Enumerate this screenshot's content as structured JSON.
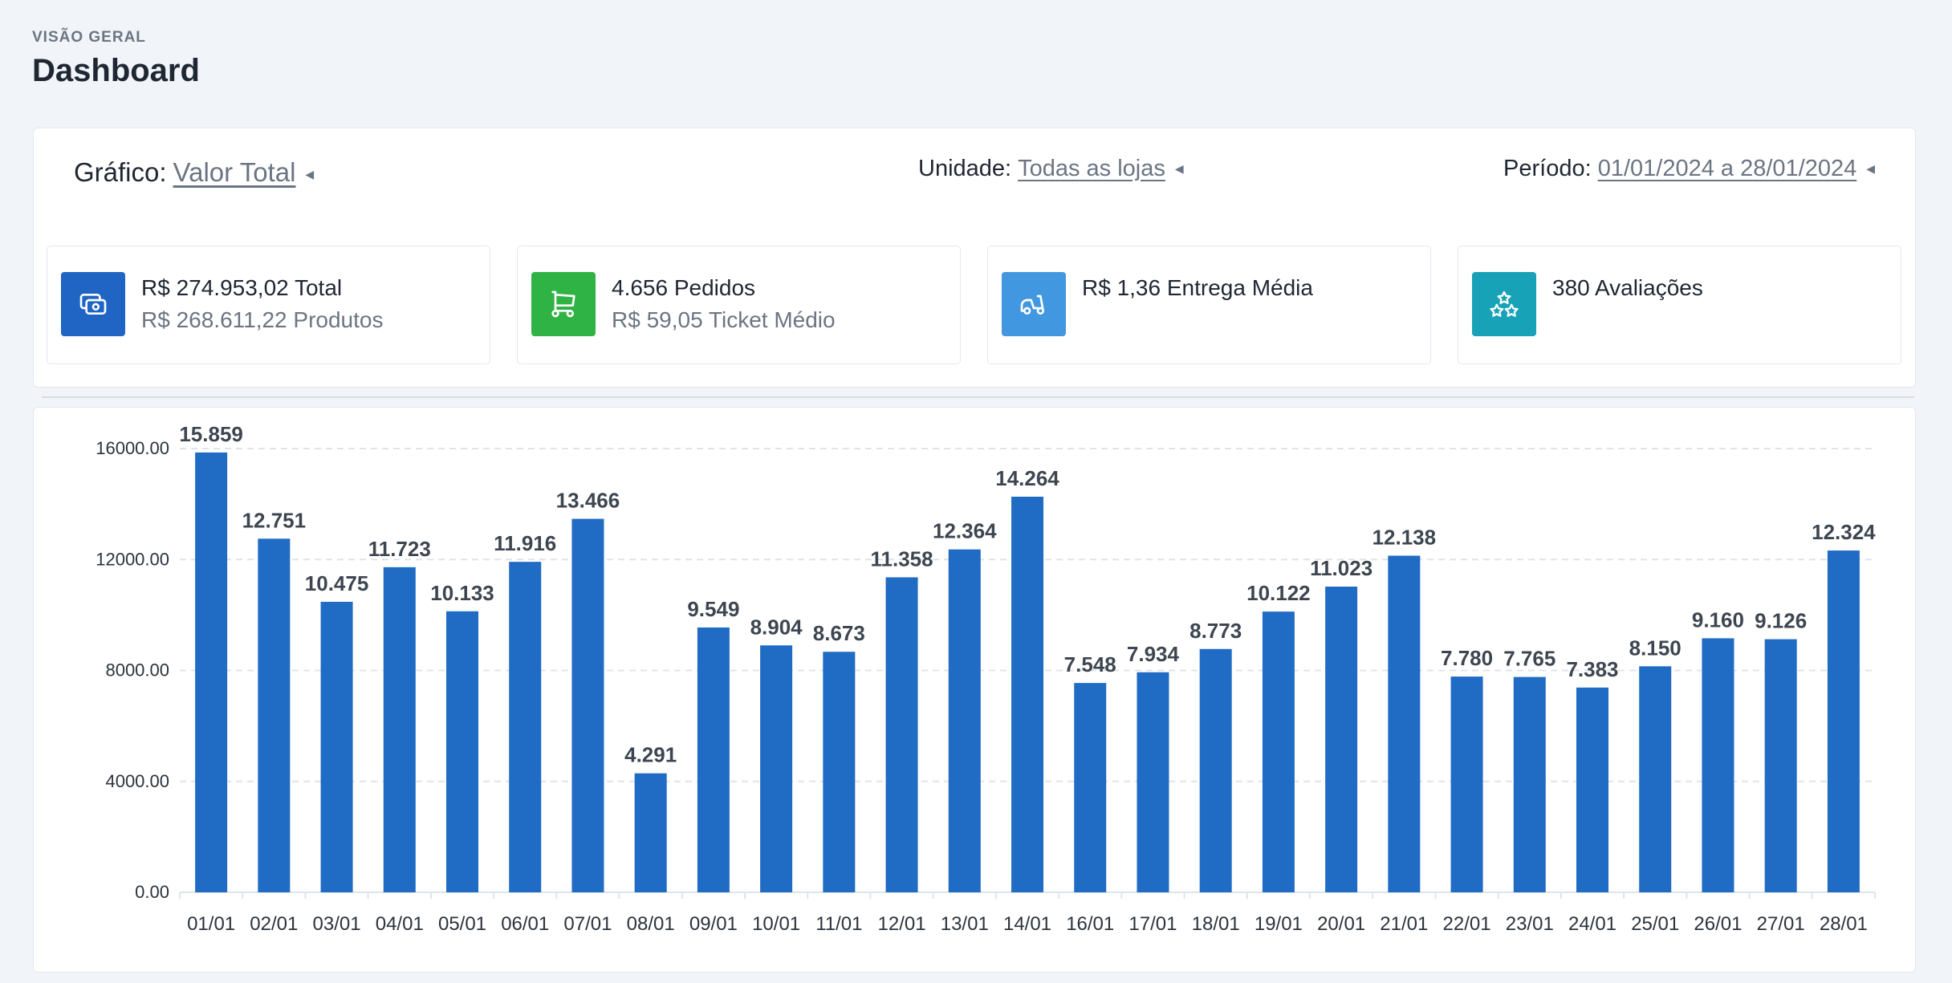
{
  "header": {
    "eyebrow": "VISÃO GERAL",
    "title": "Dashboard"
  },
  "filters": {
    "grafico": {
      "label": "Gráfico:",
      "value": "Valor Total"
    },
    "unidade": {
      "label": "Unidade:",
      "value": "Todas as lojas "
    },
    "periodo": {
      "label": "Período:",
      "value": "01/01/2024 a 28/01/2024"
    }
  },
  "stats": [
    {
      "line1": "R$ 274.953,02 Total",
      "line2": "R$ 268.611,22 Produtos",
      "icon": "money-icon",
      "color": "#2064c4"
    },
    {
      "line1": "4.656 Pedidos",
      "line2": "R$ 59,05 Ticket Médio",
      "icon": "cart-icon",
      "color": "#2fb344"
    },
    {
      "line1": "R$ 1,36 Entrega Média",
      "line2": "",
      "icon": "scooter-icon",
      "color": "#4298e0"
    },
    {
      "line1": "380 Avaliações",
      "line2": "",
      "icon": "stars-icon",
      "color": "#17a2b8"
    }
  ],
  "chart_data": {
    "type": "bar",
    "categories": [
      "01/01",
      "02/01",
      "03/01",
      "04/01",
      "05/01",
      "06/01",
      "07/01",
      "08/01",
      "09/01",
      "10/01",
      "11/01",
      "12/01",
      "13/01",
      "14/01",
      "16/01",
      "17/01",
      "18/01",
      "19/01",
      "20/01",
      "21/01",
      "22/01",
      "23/01",
      "24/01",
      "25/01",
      "26/01",
      "27/01",
      "28/01"
    ],
    "values": [
      15859,
      12751,
      10475,
      11723,
      10133,
      11916,
      13466,
      4291,
      9549,
      8904,
      8673,
      11358,
      12364,
      14264,
      7548,
      7934,
      8773,
      10122,
      11023,
      12138,
      7780,
      7765,
      7383,
      8150,
      9160,
      9126,
      12324
    ],
    "data_labels": [
      "15.859",
      "12.751",
      "10.475",
      "11.723",
      "10.133",
      "11.916",
      "13.466",
      "4.291",
      "9.549",
      "8.904",
      "8.673",
      "11.358",
      "12.364",
      "14.264",
      "7.548",
      "7.934",
      "8.773",
      "10.122",
      "11.023",
      "12.138",
      "7.780",
      "7.765",
      "7.383",
      "8.150",
      "9.160",
      "9.126",
      "12.324"
    ],
    "y_ticks": [
      "0.00",
      "4000.00",
      "8000.00",
      "12000.00",
      "16000.00"
    ],
    "ylim": [
      0,
      16000
    ],
    "grid": true,
    "bar_color": "#206bc4"
  }
}
